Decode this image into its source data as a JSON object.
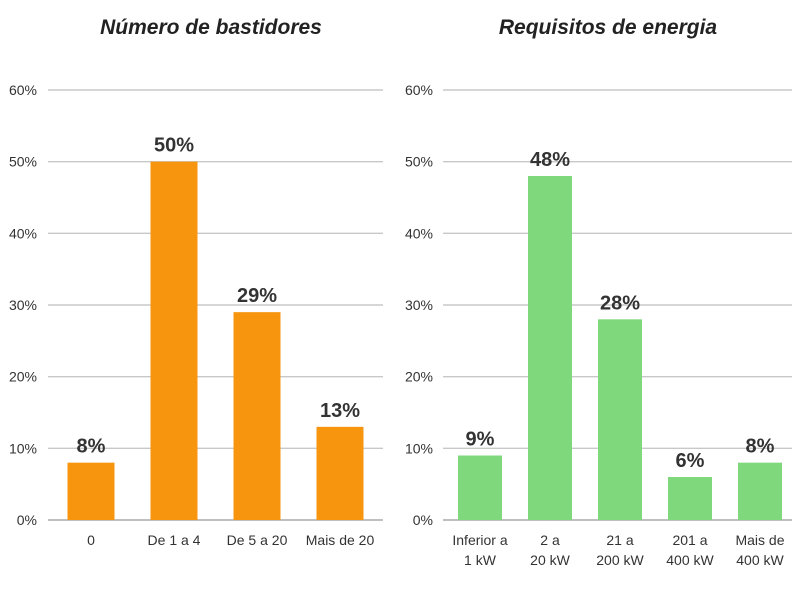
{
  "chart_data": [
    {
      "type": "bar",
      "title": "Número de bastidores",
      "categories": [
        [
          "0"
        ],
        [
          "De 1 a 4"
        ],
        [
          "De 5 a 20"
        ],
        [
          "Mais de 20"
        ]
      ],
      "values": [
        8,
        50,
        29,
        13
      ],
      "data_labels": [
        "8%",
        "50%",
        "29%",
        "13%"
      ],
      "yticks": [
        "0%",
        "10%",
        "20%",
        "30%",
        "40%",
        "50%",
        "60%"
      ],
      "ylim": [
        0,
        60
      ],
      "grid": true,
      "color": "#f7950f"
    },
    {
      "type": "bar",
      "title": "Requisitos de energia",
      "categories": [
        [
          "Inferior a",
          "1 kW"
        ],
        [
          "2 a",
          "20 kW"
        ],
        [
          "21 a",
          "200 kW"
        ],
        [
          "201 a",
          "400 kW"
        ],
        [
          "Mais de",
          "400 kW"
        ]
      ],
      "values": [
        9,
        48,
        28,
        6,
        8
      ],
      "data_labels": [
        "9%",
        "48%",
        "28%",
        "6%",
        "8%"
      ],
      "yticks": [
        "0%",
        "10%",
        "20%",
        "30%",
        "40%",
        "50%",
        "60%"
      ],
      "ylim": [
        0,
        60
      ],
      "grid": true,
      "color": "#7fd87c"
    }
  ]
}
